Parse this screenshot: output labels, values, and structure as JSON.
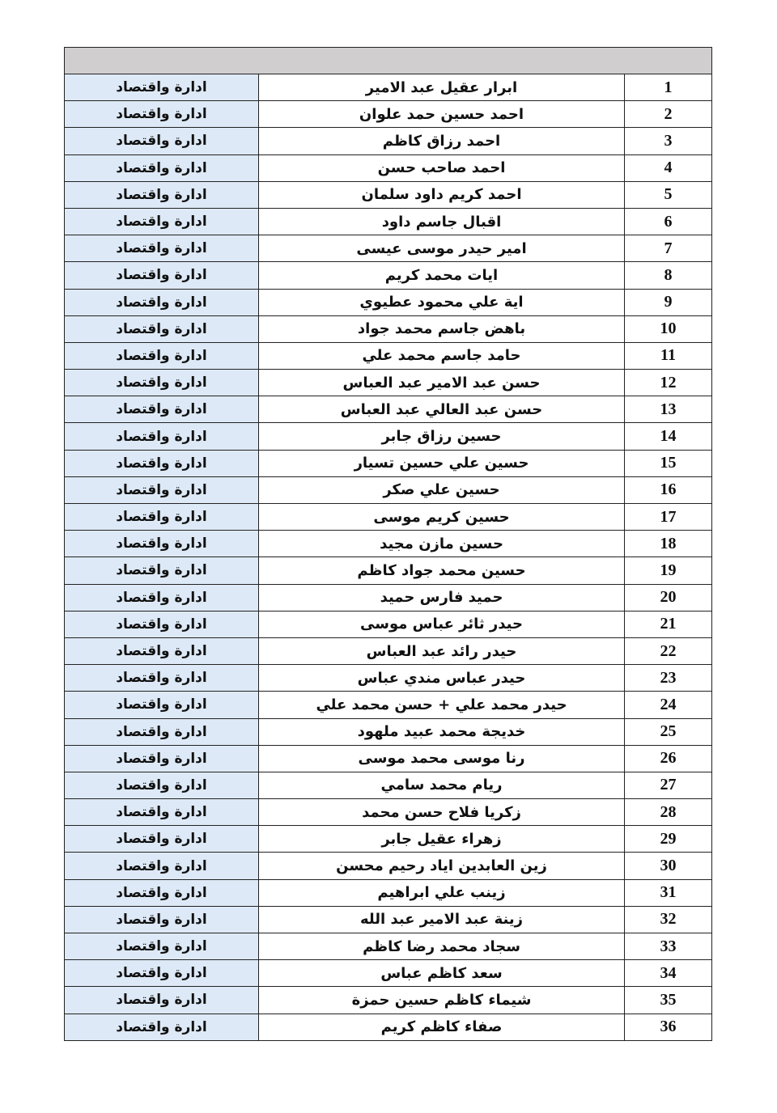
{
  "header": {
    "text": ""
  },
  "colors": {
    "header_bg": "#d0cecf",
    "department_bg": "#dde9f6"
  },
  "rows": [
    {
      "num": "1",
      "name": "ابرار عقيل عبد الامير",
      "dept": "ادارة واقتصاد"
    },
    {
      "num": "2",
      "name": "احمد حسين حمد علوان",
      "dept": "ادارة واقتصاد"
    },
    {
      "num": "3",
      "name": "احمد رزاق كاظم",
      "dept": "ادارة واقتصاد"
    },
    {
      "num": "4",
      "name": "احمد صاحب حسن",
      "dept": "ادارة واقتصاد"
    },
    {
      "num": "5",
      "name": "احمد كريم داود سلمان",
      "dept": "ادارة واقتصاد"
    },
    {
      "num": "6",
      "name": "اقبال جاسم داود",
      "dept": "ادارة واقتصاد"
    },
    {
      "num": "7",
      "name": "امير حيدر موسى عيسى",
      "dept": "ادارة واقتصاد"
    },
    {
      "num": "8",
      "name": "ايات محمد كريم",
      "dept": "ادارة واقتصاد"
    },
    {
      "num": "9",
      "name": "اية علي محمود عطيوي",
      "dept": "ادارة واقتصاد"
    },
    {
      "num": "10",
      "name": "باهض جاسم محمد جواد",
      "dept": "ادارة واقتصاد"
    },
    {
      "num": "11",
      "name": "حامد جاسم محمد علي",
      "dept": "ادارة واقتصاد"
    },
    {
      "num": "12",
      "name": "حسن عبد الامير عبد العباس",
      "dept": "ادارة واقتصاد"
    },
    {
      "num": "13",
      "name": "حسن عبد العالي عبد العباس",
      "dept": "ادارة واقتصاد"
    },
    {
      "num": "14",
      "name": "حسين رزاق جابر",
      "dept": "ادارة واقتصاد"
    },
    {
      "num": "15",
      "name": "حسين علي حسين تسيار",
      "dept": "ادارة واقتصاد"
    },
    {
      "num": "16",
      "name": "حسين علي صكر",
      "dept": "ادارة واقتصاد"
    },
    {
      "num": "17",
      "name": "حسين كريم موسى",
      "dept": "ادارة واقتصاد"
    },
    {
      "num": "18",
      "name": "حسين مازن مجيد",
      "dept": "ادارة واقتصاد"
    },
    {
      "num": "19",
      "name": "حسين محمد جواد كاظم",
      "dept": "ادارة واقتصاد"
    },
    {
      "num": "20",
      "name": "حميد فارس حميد",
      "dept": "ادارة واقتصاد"
    },
    {
      "num": "21",
      "name": "حيدر ثائر عباس موسى",
      "dept": "ادارة واقتصاد"
    },
    {
      "num": "22",
      "name": "حيدر رائد عبد العباس",
      "dept": "ادارة واقتصاد"
    },
    {
      "num": "23",
      "name": "حيدر عباس مندي عباس",
      "dept": "ادارة واقتصاد"
    },
    {
      "num": "24",
      "name": "حيدر محمد علي + حسن محمد علي",
      "dept": "ادارة واقتصاد"
    },
    {
      "num": "25",
      "name": "خديجة محمد عبيد ملهود",
      "dept": "ادارة واقتصاد"
    },
    {
      "num": "26",
      "name": "رنا موسى محمد موسى",
      "dept": "ادارة واقتصاد"
    },
    {
      "num": "27",
      "name": "ريام محمد سامي",
      "dept": "ادارة واقتصاد"
    },
    {
      "num": "28",
      "name": "زكريا فلاح حسن محمد",
      "dept": "ادارة واقتصاد"
    },
    {
      "num": "29",
      "name": "زهراء عقيل جابر",
      "dept": "ادارة واقتصاد"
    },
    {
      "num": "30",
      "name": "زين العابدين اياد رحيم محسن",
      "dept": "ادارة واقتصاد"
    },
    {
      "num": "31",
      "name": "زينب علي ابراهيم",
      "dept": "ادارة واقتصاد"
    },
    {
      "num": "32",
      "name": "زينة عبد الامير عبد الله",
      "dept": "ادارة واقتصاد"
    },
    {
      "num": "33",
      "name": "سجاد محمد رضا كاظم",
      "dept": "ادارة واقتصاد"
    },
    {
      "num": "34",
      "name": "سعد كاظم عباس",
      "dept": "ادارة واقتصاد"
    },
    {
      "num": "35",
      "name": "شيماء كاظم حسين حمزة",
      "dept": "ادارة واقتصاد"
    },
    {
      "num": "36",
      "name": "صفاء كاظم كريم",
      "dept": "ادارة واقتصاد"
    }
  ]
}
